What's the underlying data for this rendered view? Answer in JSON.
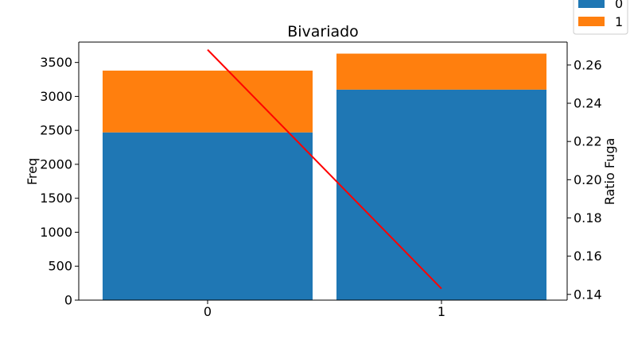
{
  "chart_data": {
    "type": "bar",
    "title": "Bivariado",
    "xlabel": "",
    "ylabel": "Freq",
    "ylabel_right": "Ratio Fuga",
    "categories": [
      "0",
      "1"
    ],
    "stacked": true,
    "series": [
      {
        "name": "0",
        "values": [
          2470,
          3100
        ],
        "color": "#1f77b4"
      },
      {
        "name": "1",
        "values": [
          910,
          530
        ],
        "color": "#ff7f0e"
      }
    ],
    "line": {
      "axis": "right",
      "values": [
        0.268,
        0.143
      ],
      "color": "#ff0000"
    },
    "ylim": [
      0,
      3800
    ],
    "ylim_right": [
      0.137,
      0.272
    ],
    "yticks": [
      0,
      500,
      1000,
      1500,
      2000,
      2500,
      3000,
      3500
    ],
    "yticks_right": [
      0.14,
      0.16,
      0.18,
      0.2,
      0.22,
      0.24,
      0.26
    ],
    "yticks_right_labels": [
      "0.14",
      "0.16",
      "0.18",
      "0.20",
      "0.22",
      "0.24",
      "0.26"
    ],
    "legend": {
      "position": "top-right",
      "entries": [
        "0",
        "1"
      ]
    }
  }
}
